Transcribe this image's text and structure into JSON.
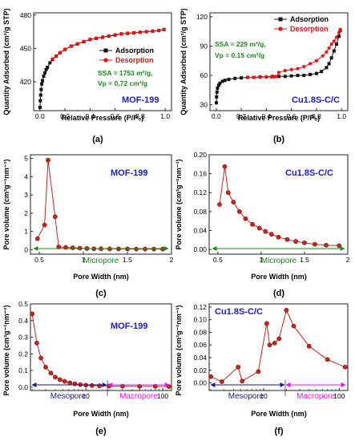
{
  "panels": [
    {
      "id": "a",
      "caption": "(a)",
      "annotation": "MOF-199",
      "annotation_color": "#1a1adb",
      "texts": [
        {
          "text": "SSA = 1753 m²/g,",
          "color": "#1a8a1a"
        },
        {
          "text": "Vp = 0.72 cm³/g",
          "color": "#1a8a1a"
        }
      ],
      "chart_data": {
        "type": "line",
        "xlabel": "Relative Pressure (P/P₀)",
        "ylabel": "Quantity Adsorbed (cm³/g STP)",
        "xlim": [
          -0.05,
          1.05
        ],
        "ylim": [
          394,
          482
        ],
        "xticks": [
          "0.0",
          "0.2",
          "0.4",
          "0.6",
          "0.8",
          "1.0"
        ],
        "xtick_values": [
          0,
          0.2,
          0.4,
          0.6,
          0.8,
          1.0
        ],
        "yticks": [
          "420",
          "450",
          "480"
        ],
        "ytick_values": [
          420,
          450,
          480
        ],
        "legend_position": "center-right",
        "series": [
          {
            "name": "Adsorption",
            "color": "#111111",
            "marker": "square",
            "x": [
              0.001,
              0.003,
              0.006,
              0.01,
              0.015,
              0.02,
              0.03,
              0.04,
              0.05,
              0.06,
              0.08,
              0.1,
              0.13,
              0.16,
              0.2,
              0.25,
              0.3,
              0.35,
              0.4,
              0.45,
              0.5,
              0.55,
              0.6,
              0.65,
              0.7,
              0.75,
              0.8,
              0.85,
              0.9,
              0.95,
              0.99
            ],
            "y": [
              397,
              403,
              408,
              413,
              418,
              421,
              425,
              428,
              431,
              433,
              437,
              440,
              443,
              446,
              449,
              452,
              454,
              456,
              458,
              459,
              460,
              461,
              462,
              463,
              463.5,
              464,
              464.5,
              465,
              465.5,
              466,
              467
            ]
          },
          {
            "name": "Desorption",
            "color": "#ee1111",
            "marker": "circle",
            "x": [
              0.99,
              0.95,
              0.9,
              0.85,
              0.8,
              0.75,
              0.7,
              0.65,
              0.6,
              0.55,
              0.5,
              0.45,
              0.4,
              0.35,
              0.3,
              0.25,
              0.2,
              0.16,
              0.13,
              0.1
            ],
            "y": [
              467,
              466.2,
              465.7,
              465.2,
              464.7,
              464.2,
              463.7,
              463.2,
              462.3,
              461.3,
              460.3,
              459.3,
              458.2,
              456.2,
              454.2,
              452.2,
              449.2,
              446.2,
              443.2,
              440.5
            ]
          }
        ]
      }
    },
    {
      "id": "b",
      "caption": "(b)",
      "annotation": "Cu1.8S-C/C",
      "annotation_color": "#1a1adb",
      "texts": [
        {
          "text": "SSA = 229 m²/g,",
          "color": "#1a8a1a"
        },
        {
          "text": "Vp = 0.15 cm³/g",
          "color": "#1a8a1a"
        }
      ],
      "chart_data": {
        "type": "line",
        "xlabel": "Relative Pressure (P/Pₒ)",
        "ylabel": "Quantity Adsorbed (cm³/g STP)",
        "xlim": [
          -0.05,
          1.05
        ],
        "ylim": [
          24,
          124
        ],
        "xticks": [
          "0.0",
          "0.2",
          "0.4",
          "0.6",
          "0.8",
          "1.0"
        ],
        "xtick_values": [
          0,
          0.2,
          0.4,
          0.6,
          0.8,
          1.0
        ],
        "yticks": [
          "30",
          "60",
          "90",
          "120"
        ],
        "ytick_values": [
          30,
          60,
          90,
          120
        ],
        "legend_position": "top-right",
        "series": [
          {
            "name": "Adsorption",
            "color": "#111111",
            "marker": "square",
            "x": [
              0.001,
              0.003,
              0.006,
              0.01,
              0.02,
              0.03,
              0.05,
              0.07,
              0.1,
              0.15,
              0.2,
              0.25,
              0.3,
              0.35,
              0.4,
              0.45,
              0.5,
              0.55,
              0.6,
              0.65,
              0.7,
              0.75,
              0.8,
              0.84,
              0.88,
              0.9,
              0.92,
              0.94,
              0.96,
              0.98,
              0.99
            ],
            "y": [
              32,
              38,
              43,
              47,
              50,
              52,
              54,
              55,
              56,
              57,
              57.5,
              58,
              58,
              58.5,
              58.5,
              59,
              59,
              59,
              59.5,
              60,
              60,
              61,
              62,
              64,
              68,
              72,
              78,
              85,
              92,
              100,
              106
            ]
          },
          {
            "name": "Desorption",
            "color": "#ee1111",
            "marker": "circle",
            "x": [
              0.99,
              0.98,
              0.96,
              0.94,
              0.92,
              0.9,
              0.88,
              0.85,
              0.8,
              0.75,
              0.7,
              0.65,
              0.6,
              0.55,
              0.5,
              0.48,
              0.46,
              0.44,
              0.4,
              0.35,
              0.3,
              0.25
            ],
            "y": [
              107,
              104,
              99,
              95,
              92,
              88,
              84,
              80,
              75,
              72,
              69,
              67,
              66,
              65,
              63,
              59,
              58.5,
              58.5,
              58.5,
              58,
              58,
              58
            ]
          }
        ]
      }
    },
    {
      "id": "c",
      "caption": "(c)",
      "annotation": "MOF-199",
      "annotation_color": "#1a1adb",
      "region_labels": [
        {
          "text": "Micropore",
          "color": "#1a8a1a"
        }
      ],
      "chart_data": {
        "type": "line",
        "xlabel": "Pore Width (nm)",
        "ylabel": "Pore volume (cm³g⁻¹nm⁻¹)",
        "xlim": [
          0.4,
          2.0
        ],
        "ylim": [
          -0.25,
          5.2
        ],
        "xticks": [
          "0.5",
          "1",
          "1.5",
          "2"
        ],
        "xtick_values": [
          0.5,
          1.0,
          1.5,
          2.0
        ],
        "yticks": [
          "0",
          "1",
          "2",
          "3",
          "4",
          "5"
        ],
        "ytick_values": [
          0,
          1,
          2,
          3,
          4,
          5
        ],
        "series": [
          {
            "name": "",
            "color": "#c0281e",
            "marker": "circle",
            "x": [
              0.48,
              0.56,
              0.6,
              0.68,
              0.72,
              0.8,
              0.88,
              0.96,
              1.04,
              1.12,
              1.2,
              1.3,
              1.4,
              1.5,
              1.6,
              1.7,
              1.8,
              1.9
            ],
            "y": [
              0.6,
              1.35,
              4.9,
              1.8,
              0.15,
              0.12,
              0.1,
              0.08,
              0.06,
              0.05,
              0.05,
              0.04,
              0.04,
              0.04,
              0.03,
              0.03,
              0.03,
              0.03
            ]
          }
        ]
      }
    },
    {
      "id": "d",
      "caption": "(d)",
      "annotation": "Cu1.8S-C/C",
      "annotation_color": "#1a1adb",
      "region_labels": [
        {
          "text": "Micropore",
          "color": "#1a8a1a"
        }
      ],
      "chart_data": {
        "type": "line",
        "xlabel": "Pore Width (nm)",
        "ylabel": "Pore volume (cm³g⁻¹nm⁻¹)",
        "xlim": [
          0.4,
          2.0
        ],
        "ylim": [
          -0.01,
          0.2
        ],
        "xticks": [
          "0.5",
          "1",
          "1.5",
          "2"
        ],
        "xtick_values": [
          0.5,
          1.0,
          1.5,
          2.0
        ],
        "yticks": [
          "0.00",
          "0.04",
          "0.08",
          "0.12",
          "0.16",
          "0.20"
        ],
        "ytick_values": [
          0.0,
          0.04,
          0.08,
          0.12,
          0.16,
          0.2
        ],
        "series": [
          {
            "name": "",
            "color": "#c0281e",
            "marker": "circle",
            "x": [
              0.52,
              0.58,
              0.62,
              0.68,
              0.75,
              0.82,
              0.9,
              0.98,
              1.05,
              1.12,
              1.2,
              1.3,
              1.4,
              1.5,
              1.62,
              1.75,
              1.9
            ],
            "y": [
              0.095,
              0.175,
              0.12,
              0.1,
              0.08,
              0.065,
              0.053,
              0.045,
              0.038,
              0.032,
              0.026,
              0.021,
              0.017,
              0.014,
              0.011,
              0.009,
              0.008
            ]
          }
        ]
      }
    },
    {
      "id": "e",
      "caption": "(e)",
      "annotation": "MOF-199",
      "annotation_color": "#1a1adb",
      "region_labels": [
        {
          "text": "Mesopore",
          "color": "#1a1a8a"
        },
        {
          "text": "Macropore",
          "color": "#ee11ee"
        }
      ],
      "chart_data": {
        "type": "line",
        "xscale": "log",
        "xlabel": "Pore Width (nm)",
        "ylabel": "Pore volume (cm³g⁻¹nm⁻¹)",
        "xlim": [
          1.9,
          130
        ],
        "ylim": [
          -0.02,
          0.5
        ],
        "xticks": [
          "10",
          "100"
        ],
        "xtick_values": [
          10,
          100
        ],
        "yticks": [
          "0.0",
          "0.1",
          "0.2",
          "0.3",
          "0.4",
          "0.5"
        ],
        "ytick_values": [
          0.0,
          0.1,
          0.2,
          0.3,
          0.4,
          0.5
        ],
        "series": [
          {
            "name": "",
            "color": "#c0281e",
            "marker": "circle",
            "x": [
              2.0,
              2.3,
              2.6,
              3.0,
              3.5,
              4.0,
              4.6,
              5.3,
              6.2,
              7.2,
              8.5,
              10,
              12,
              15,
              20,
              30,
              50,
              80,
              120
            ],
            "y": [
              0.44,
              0.265,
              0.175,
              0.12,
              0.085,
              0.06,
              0.045,
              0.035,
              0.026,
              0.02,
              0.015,
              0.012,
              0.01,
              0.008,
              0.007,
              0.006,
              0.005,
              0.005,
              0.004
            ]
          }
        ]
      }
    },
    {
      "id": "f",
      "caption": "(f)",
      "annotation": "Cu1.8S-C/C",
      "annotation_color": "#1a1adb",
      "region_labels": [
        {
          "text": "Mesopore",
          "color": "#1a1a8a"
        },
        {
          "text": "Macropore",
          "color": "#ee11ee"
        }
      ],
      "chart_data": {
        "type": "line",
        "xscale": "log",
        "xlabel": "Pore Width (nm)",
        "ylabel": "Pore volume (cm³g⁻¹nm⁻¹)",
        "xlim": [
          1.9,
          130
        ],
        "ylim": [
          -0.012,
          0.125
        ],
        "xticks": [
          "10",
          "100"
        ],
        "xtick_values": [
          10,
          100
        ],
        "yticks": [
          "0.00",
          "0.02",
          "0.04",
          "0.06",
          "0.08",
          "0.10",
          "0.12"
        ],
        "ytick_values": [
          0.0,
          0.02,
          0.04,
          0.06,
          0.08,
          0.1,
          0.12
        ],
        "series": [
          {
            "name": "",
            "color": "#c0281e",
            "marker": "circle",
            "x": [
              2.0,
              2.8,
              4.6,
              5.2,
              8.5,
              11,
              12,
              14,
              16,
              20,
              25,
              40,
              70,
              120
            ],
            "y": [
              0.01,
              0.002,
              0.025,
              0.003,
              0.018,
              0.094,
              0.06,
              0.063,
              0.07,
              0.115,
              0.09,
              0.058,
              0.037,
              0.025
            ]
          }
        ]
      }
    }
  ]
}
